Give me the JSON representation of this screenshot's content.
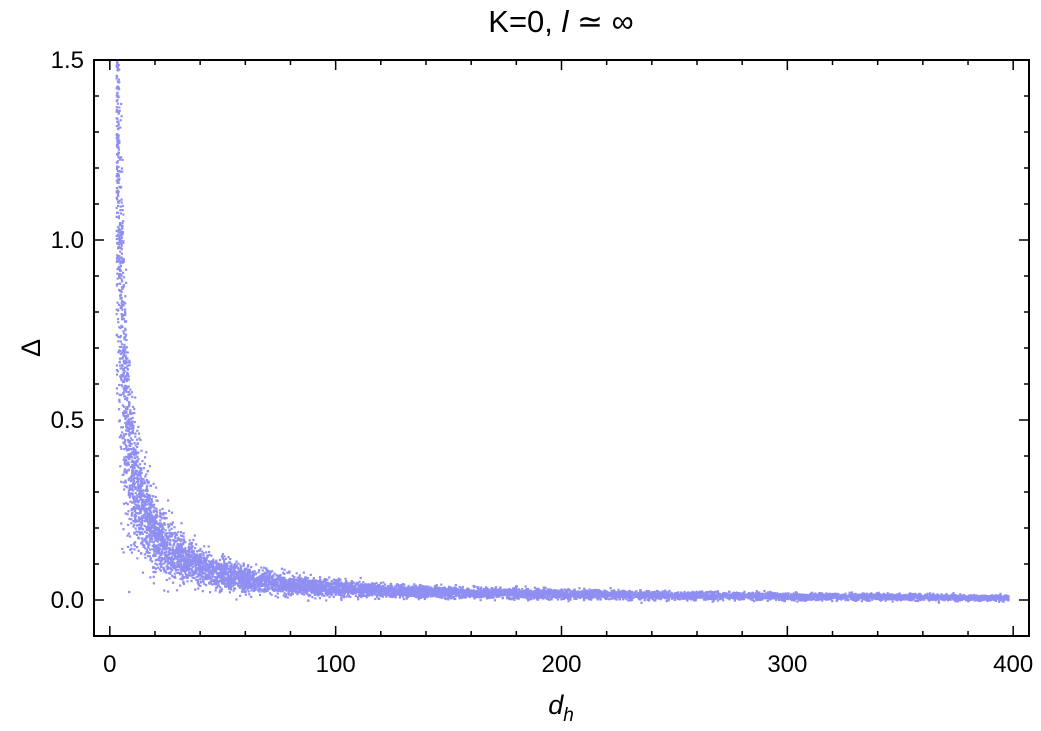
{
  "chart_data": {
    "type": "scatter",
    "title": "K=0, l ≃ ∞",
    "title_parts": {
      "lead": "K=0,",
      "symbol": "l",
      "trail": " ≃ ∞"
    },
    "xlabel": {
      "base": "d",
      "subscript": "h"
    },
    "ylabel": "Δ",
    "xlim": [
      -7,
      407
    ],
    "ylim": [
      -0.1,
      1.5
    ],
    "x_ticks": [
      0,
      100,
      200,
      300,
      400
    ],
    "x_tick_labels": [
      "0",
      "100",
      "200",
      "300",
      "400"
    ],
    "y_ticks": [
      0.0,
      0.5,
      1.0,
      1.5
    ],
    "y_tick_labels": [
      "0.0",
      "0.5",
      "1.0",
      "1.5"
    ],
    "grid": false,
    "marker_color": "#8f8ff2",
    "series": [
      {
        "description_profile": "points",
        "x": [
          3,
          4,
          4,
          5,
          5,
          6,
          6,
          7,
          8,
          9,
          10,
          12,
          14,
          16,
          18,
          20,
          22,
          25,
          28,
          30,
          35,
          40,
          45,
          50,
          55,
          60,
          70,
          80,
          90,
          100,
          120,
          140,
          160,
          180,
          200,
          220,
          250,
          280,
          300,
          330,
          360,
          380,
          395
        ],
        "y": [
          1.45,
          1.2,
          1.05,
          0.95,
          0.85,
          0.75,
          0.65,
          0.55,
          0.48,
          0.42,
          0.36,
          0.31,
          0.27,
          0.24,
          0.21,
          0.19,
          0.17,
          0.15,
          0.135,
          0.125,
          0.105,
          0.09,
          0.08,
          0.07,
          0.065,
          0.06,
          0.05,
          0.042,
          0.037,
          0.033,
          0.027,
          0.023,
          0.02,
          0.018,
          0.016,
          0.015,
          0.013,
          0.011,
          0.01,
          0.009,
          0.008,
          0.007,
          0.006
        ]
      }
    ]
  }
}
